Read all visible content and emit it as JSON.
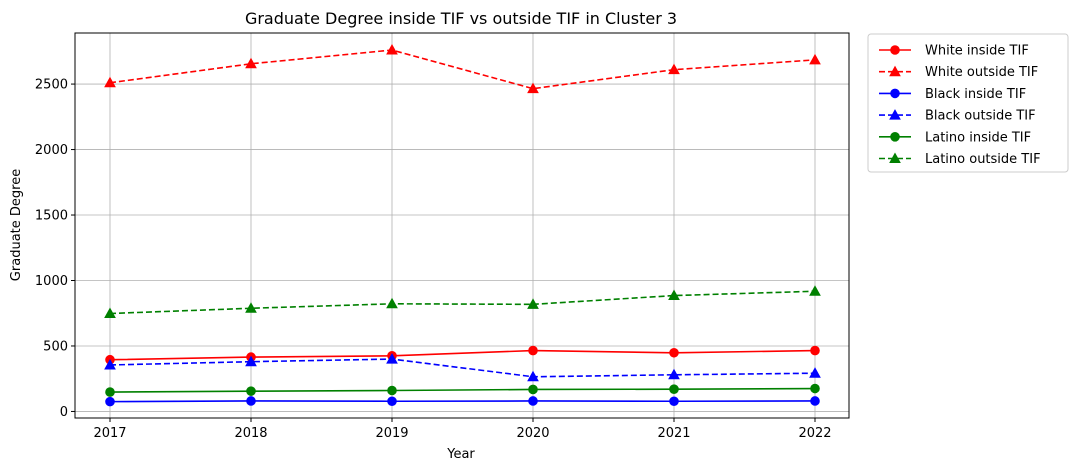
{
  "chart_data": {
    "type": "line",
    "title": "Graduate Degree inside TIF vs outside TIF in Cluster 3",
    "xlabel": "Year",
    "ylabel": "Graduate Degree",
    "x": [
      "2017",
      "2018",
      "2019",
      "2020",
      "2021",
      "2022"
    ],
    "yticks": [
      "0",
      "500",
      "1000",
      "1500",
      "2000",
      "2500"
    ],
    "ylim": [
      -50,
      2890
    ],
    "grid": true,
    "legend_position": "outside-top-right",
    "series": [
      {
        "name": "White inside TIF",
        "color": "#ff0000",
        "dash": "solid",
        "marker": "circle",
        "values": [
          395,
          415,
          425,
          465,
          448,
          465
        ]
      },
      {
        "name": "White outside TIF",
        "color": "#ff0000",
        "dash": "dashed",
        "marker": "triangle",
        "values": [
          2510,
          2655,
          2760,
          2465,
          2610,
          2685
        ]
      },
      {
        "name": "Black inside TIF",
        "color": "#0000ff",
        "dash": "solid",
        "marker": "circle",
        "values": [
          75,
          80,
          78,
          80,
          78,
          80
        ]
      },
      {
        "name": "Black outside TIF",
        "color": "#0000ff",
        "dash": "dashed",
        "marker": "triangle",
        "values": [
          355,
          380,
          400,
          265,
          280,
          292
        ]
      },
      {
        "name": "Latino inside TIF",
        "color": "#008000",
        "dash": "solid",
        "marker": "circle",
        "values": [
          148,
          155,
          160,
          168,
          170,
          175
        ]
      },
      {
        "name": "Latino outside TIF",
        "color": "#008000",
        "dash": "dashed",
        "marker": "triangle",
        "values": [
          748,
          788,
          822,
          818,
          885,
          918
        ]
      }
    ]
  }
}
